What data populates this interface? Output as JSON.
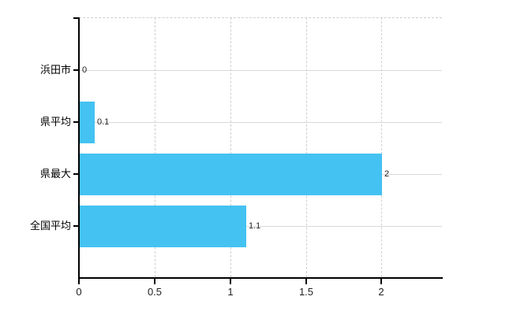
{
  "chart_data": {
    "type": "bar",
    "orientation": "horizontal",
    "title": "",
    "xlabel": "",
    "ylabel": "",
    "categories": [
      "浜田市",
      "県平均",
      "県最大",
      "全国平均"
    ],
    "values": [
      0,
      0.1,
      2,
      1.1
    ],
    "value_labels": [
      "0",
      "0.1",
      "2",
      "1.1"
    ],
    "xlim": [
      0,
      2.4
    ],
    "xticks": [
      0,
      0.5,
      1,
      1.5,
      2
    ],
    "xtick_labels": [
      "0",
      "0.5",
      "1",
      "1.5",
      "2"
    ],
    "grid": true,
    "legend": false,
    "colors": {
      "bar": "#44C2F2",
      "axis": "#000000",
      "grid_horizontal": "#d9d9d9",
      "grid_vertical": "#cfcfcf",
      "text": "#000000",
      "background": "#ffffff"
    }
  }
}
